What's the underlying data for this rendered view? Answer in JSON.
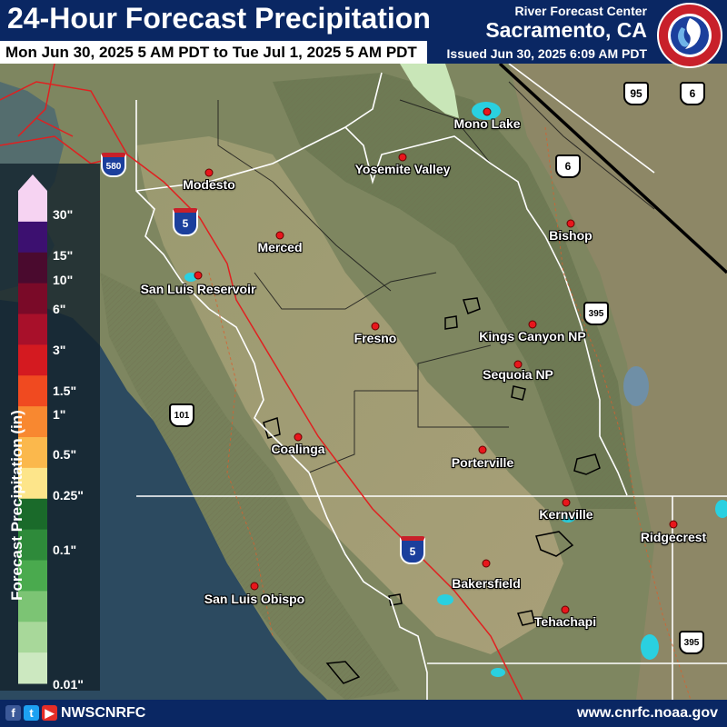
{
  "header": {
    "title": "24-Hour Forecast Precipitation",
    "subtitle": "Mon Jun 30, 2025 5 AM PDT to Tue Jul 1, 2025 5 AM PDT",
    "rfc_label": "River Forecast Center",
    "rfc_city": "Sacramento, CA",
    "issued": "Issued Jun 30, 2025 6:09 AM PDT",
    "logo_text": "NATIONAL WEATHER SERVICE"
  },
  "legend": {
    "title": "Forecast Precipitation (in)",
    "ticks": [
      "30\"",
      "15\"",
      "10\"",
      "6\"",
      "3\"",
      "1.5\"",
      "1\"",
      "0.5\"",
      "0.25\"",
      "0.1\"",
      "0.01\""
    ],
    "colors": [
      "#f6d3f2",
      "#3c1070",
      "#4a0a2e",
      "#7a0a28",
      "#a8102a",
      "#d41a20",
      "#f04a20",
      "#f88830",
      "#fbb84c",
      "#fde58a",
      "#1a6a2a",
      "#2e8a3a",
      "#4aaa4e",
      "#7cc474",
      "#a8d89a",
      "#cce8c0"
    ]
  },
  "cities": [
    {
      "name": "Modesto"
    },
    {
      "name": "Yosemite Valley"
    },
    {
      "name": "Mono Lake"
    },
    {
      "name": "Merced"
    },
    {
      "name": "Bishop"
    },
    {
      "name": "San Luis Reservoir"
    },
    {
      "name": "Fresno"
    },
    {
      "name": "Kings Canyon NP"
    },
    {
      "name": "Sequoia NP"
    },
    {
      "name": "Coalinga"
    },
    {
      "name": "Porterville"
    },
    {
      "name": "Kernville"
    },
    {
      "name": "Ridgecrest"
    },
    {
      "name": "Bakersfield"
    },
    {
      "name": "San Luis Obispo"
    },
    {
      "name": "Tehachapi"
    }
  ],
  "highways": {
    "interstate_5": "5",
    "interstate_580": "580",
    "us_6": "6",
    "us_95": "95",
    "us_101": "101",
    "us_395": "395"
  },
  "footer": {
    "social_handle": "NWSCNRFC",
    "website": "www.cnrfc.noaa.gov",
    "social_icons": [
      "facebook-icon",
      "twitter-icon",
      "youtube-icon"
    ]
  }
}
